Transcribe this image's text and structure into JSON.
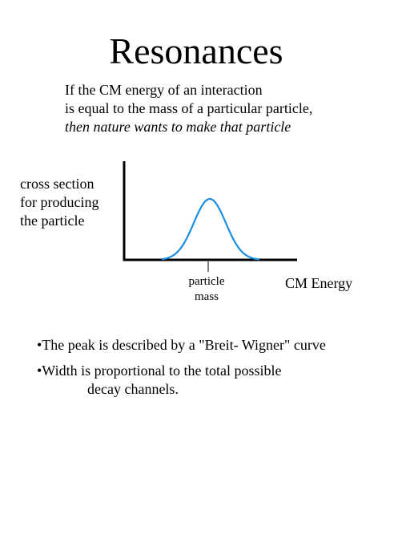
{
  "title": "Resonances",
  "intro": {
    "line1": "If the CM energy of an interaction",
    "line2": "is equal to the mass of a particular particle,",
    "line3": "then nature wants to make that particle"
  },
  "diagram": {
    "y_label": {
      "line1": "cross section",
      "line2": "for producing",
      "line3": "the particle"
    },
    "x_label": "CM Energy",
    "peak_label": {
      "line1": "particle",
      "line2": "mass"
    },
    "curve_color": "#1a8fe0",
    "axis_color": "#000000"
  },
  "bullets": [
    {
      "text": "•The peak is described by a \"Breit- Wigner\" curve"
    },
    {
      "text": "•Width is proportional to the total possible",
      "continuation": "decay channels."
    }
  ]
}
